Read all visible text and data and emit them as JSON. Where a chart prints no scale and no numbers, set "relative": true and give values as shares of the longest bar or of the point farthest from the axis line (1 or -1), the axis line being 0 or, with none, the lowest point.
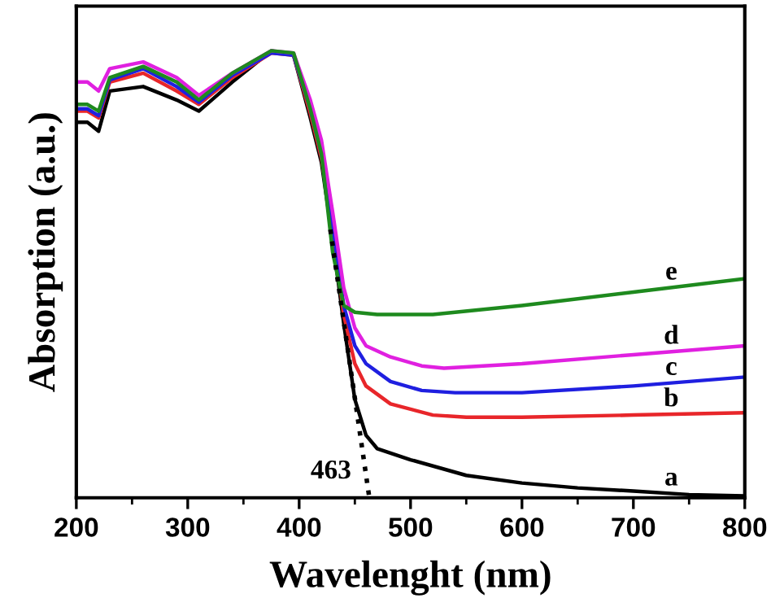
{
  "chart_data": {
    "type": "line",
    "relative": true,
    "xlabel": "Wavelenght (nm)",
    "ylabel": "Absorption (a.u.)",
    "xlim": [
      200,
      800
    ],
    "xticks": [
      200,
      300,
      400,
      500,
      600,
      700,
      800
    ],
    "grid": false,
    "legend": false,
    "marker": "none",
    "line_style": "solid",
    "tick_labels": "x",
    "series": [
      {
        "name": "a",
        "color": "#000000",
        "x": [
          200,
          210,
          220,
          230,
          260,
          290,
          310,
          340,
          375,
          395,
          410,
          420,
          430,
          440,
          450,
          460,
          470,
          500,
          550,
          600,
          650,
          700,
          750,
          800
        ],
        "values": [
          0.84,
          0.84,
          0.82,
          0.91,
          0.92,
          0.89,
          0.865,
          0.93,
          1.0,
          0.99,
          0.85,
          0.75,
          0.58,
          0.39,
          0.22,
          0.14,
          0.11,
          0.085,
          0.05,
          0.033,
          0.022,
          0.015,
          0.007,
          0.004
        ]
      },
      {
        "name": "b",
        "color": "#e8262a",
        "x": [
          200,
          210,
          220,
          230,
          260,
          290,
          310,
          340,
          375,
          395,
          410,
          420,
          430,
          440,
          450,
          460,
          482,
          520,
          550,
          600,
          700,
          800
        ],
        "values": [
          0.865,
          0.865,
          0.85,
          0.93,
          0.95,
          0.91,
          0.88,
          0.94,
          0.995,
          0.99,
          0.86,
          0.76,
          0.6,
          0.41,
          0.3,
          0.25,
          0.21,
          0.185,
          0.18,
          0.18,
          0.185,
          0.19
        ]
      },
      {
        "name": "c",
        "color": "#1f1fe0",
        "x": [
          200,
          210,
          220,
          230,
          260,
          290,
          310,
          340,
          375,
          395,
          410,
          420,
          430,
          440,
          450,
          460,
          482,
          510,
          540,
          600,
          700,
          800
        ],
        "values": [
          0.87,
          0.87,
          0.855,
          0.935,
          0.96,
          0.92,
          0.885,
          0.945,
          0.995,
          0.99,
          0.87,
          0.77,
          0.61,
          0.43,
          0.34,
          0.3,
          0.26,
          0.24,
          0.235,
          0.235,
          0.25,
          0.27
        ]
      },
      {
        "name": "d",
        "color": "#e020e0",
        "x": [
          200,
          210,
          220,
          230,
          260,
          290,
          310,
          340,
          375,
          395,
          410,
          420,
          430,
          440,
          450,
          460,
          482,
          510,
          530,
          600,
          700,
          800
        ],
        "values": [
          0.93,
          0.93,
          0.91,
          0.96,
          0.975,
          0.94,
          0.9,
          0.95,
          1.0,
          0.995,
          0.89,
          0.8,
          0.64,
          0.47,
          0.38,
          0.34,
          0.315,
          0.295,
          0.29,
          0.3,
          0.32,
          0.34
        ]
      },
      {
        "name": "e",
        "color": "#1e8a1e",
        "x": [
          200,
          210,
          220,
          230,
          260,
          290,
          310,
          340,
          375,
          395,
          410,
          420,
          430,
          440,
          450,
          470,
          520,
          600,
          700,
          800
        ],
        "values": [
          0.88,
          0.88,
          0.865,
          0.94,
          0.965,
          0.93,
          0.89,
          0.95,
          1.0,
          0.995,
          0.87,
          0.77,
          0.55,
          0.43,
          0.415,
          0.41,
          0.41,
          0.43,
          0.46,
          0.49
        ]
      },
      {
        "color": "#000000",
        "line_style": "dotted",
        "x": [
          428,
          463
        ],
        "values": [
          0.6,
          0.0
        ]
      }
    ],
    "annotations": [
      "463"
    ]
  }
}
